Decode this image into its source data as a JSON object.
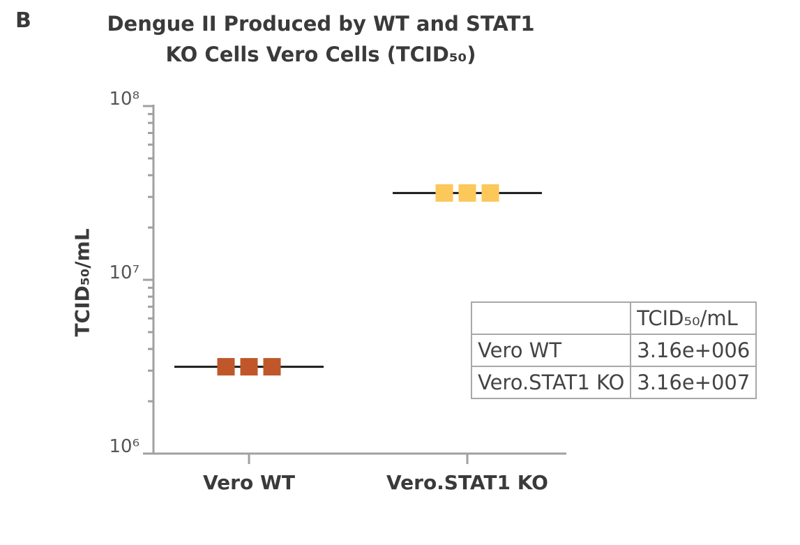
{
  "chart_data": {
    "type": "dotplot",
    "panel": "B",
    "title": "Dengue II Produced by WT and STAT1 KO Cells Vero Cells (TCID₅₀)",
    "ylabel": "TCID₅₀/mL",
    "log_y": true,
    "categories": [
      "Vero WT",
      "Vero.STAT1 KO"
    ],
    "colors": [
      "#c0572a",
      "#fcc85a"
    ],
    "values": [
      [
        3160000,
        3160000,
        3160000
      ],
      [
        31600000,
        31600000,
        31600000
      ]
    ],
    "means": [
      3160000,
      31600000
    ],
    "ylim": [
      1000000,
      100000000
    ],
    "yticks": [
      {
        "value": 1000000,
        "label": "10⁶"
      },
      {
        "value": 10000000,
        "label": "10⁷"
      },
      {
        "value": 100000000,
        "label": "10⁸"
      }
    ],
    "yticks_minor": [
      2000000,
      3000000,
      4000000,
      5000000,
      6000000,
      7000000,
      8000000,
      9000000,
      20000000,
      30000000,
      40000000,
      50000000,
      60000000,
      70000000,
      80000000,
      90000000
    ],
    "table": {
      "columns": [
        "TCID₅₀/mL"
      ],
      "rows": [
        [
          "Vero WT",
          "3.16e+006"
        ],
        [
          "Vero.STAT1 KO",
          "3.16e+007"
        ]
      ]
    }
  }
}
